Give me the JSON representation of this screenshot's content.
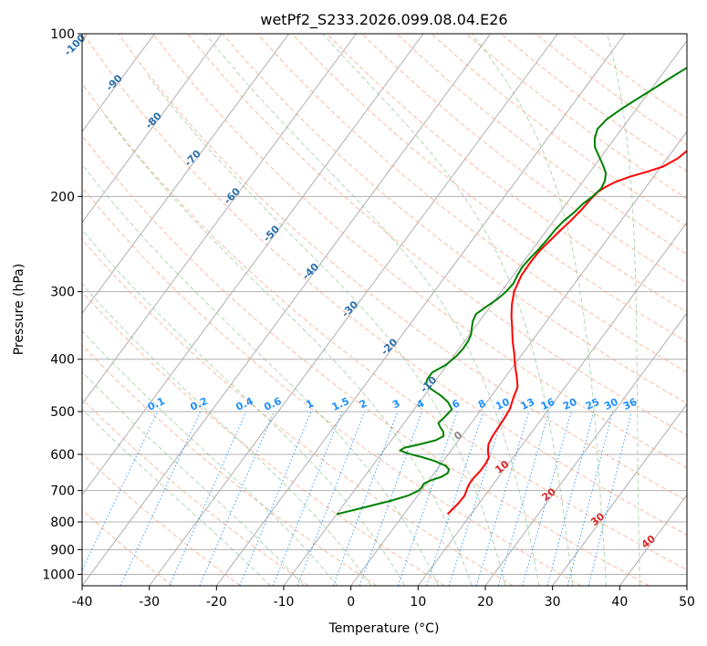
{
  "chart_data": {
    "type": "line",
    "subtype": "skew-t log-p",
    "title": "wetPf2_S233.2026.099.08.04.E26",
    "xlabel": "Temperature (°C)",
    "ylabel": "Pressure (hPa)",
    "xlim": [
      -40,
      50
    ],
    "ylim": [
      1050,
      100
    ],
    "x_ticks": [
      "-40",
      "-30",
      "-20",
      "-10",
      "0",
      "10",
      "20",
      "30",
      "40",
      "50"
    ],
    "y_ticks": [
      {
        "p": 100,
        "label": "100"
      },
      {
        "p": 200,
        "label": "200"
      },
      {
        "p": 300,
        "label": "300"
      },
      {
        "p": 400,
        "label": "400"
      },
      {
        "p": 500,
        "label": "500"
      },
      {
        "p": 600,
        "label": "600"
      },
      {
        "p": 700,
        "label": "700"
      },
      {
        "p": 800,
        "label": "800"
      },
      {
        "p": 900,
        "label": "900"
      },
      {
        "p": 1000,
        "label": "1000"
      }
    ],
    "series": [
      {
        "name": "Temperature",
        "color": "#ff0000",
        "points": [
          [
            774,
            6.5
          ],
          [
            740,
            6.9
          ],
          [
            715,
            7.0
          ],
          [
            695,
            6.6
          ],
          [
            680,
            6.4
          ],
          [
            662,
            6.4
          ],
          [
            645,
            6.6
          ],
          [
            625,
            6.6
          ],
          [
            608,
            6.4
          ],
          [
            590,
            5.5
          ],
          [
            575,
            4.9
          ],
          [
            555,
            4.6
          ],
          [
            535,
            4.5
          ],
          [
            515,
            4.4
          ],
          [
            495,
            4.2
          ],
          [
            472,
            3.5
          ],
          [
            450,
            2.9
          ],
          [
            430,
            1.6
          ],
          [
            410,
            0.1
          ],
          [
            390,
            -1.3
          ],
          [
            370,
            -2.9
          ],
          [
            350,
            -4.4
          ],
          [
            333,
            -5.8
          ],
          [
            317,
            -7.0
          ],
          [
            300,
            -8.1
          ],
          [
            280,
            -8.8
          ],
          [
            265,
            -8.9
          ],
          [
            252,
            -8.8
          ],
          [
            242,
            -8.4
          ],
          [
            232,
            -8.0
          ],
          [
            222,
            -7.5
          ],
          [
            212,
            -7.1
          ],
          [
            203,
            -6.9
          ],
          [
            196,
            -6.6
          ],
          [
            192,
            -6.0
          ],
          [
            188,
            -5.1
          ],
          [
            184,
            -3.6
          ],
          [
            180,
            -1.5
          ],
          [
            176,
            0.3
          ],
          [
            170,
            1.6
          ],
          [
            165,
            2.1
          ],
          [
            160,
            2.6
          ],
          [
            155,
            3.5
          ],
          [
            150,
            4.2
          ],
          [
            145,
            5.0
          ],
          [
            140,
            5.9
          ],
          [
            135,
            7.0
          ],
          [
            130,
            8.1
          ],
          [
            125,
            9.0
          ],
          [
            120,
            10.0
          ],
          [
            115,
            10.7
          ],
          [
            111,
            10.7
          ],
          [
            107,
            10.4
          ],
          [
            103,
            10.1
          ],
          [
            100,
            10.0
          ]
        ]
      },
      {
        "name": "Dewpoint",
        "color": "#008000",
        "points": [
          [
            774,
            -10.0
          ],
          [
            750,
            -6.3
          ],
          [
            730,
            -3.3
          ],
          [
            715,
            -1.4
          ],
          [
            700,
            -0.4
          ],
          [
            690,
            -0.3
          ],
          [
            680,
            -0.4
          ],
          [
            670,
            0.3
          ],
          [
            660,
            1.5
          ],
          [
            650,
            2.0
          ],
          [
            640,
            1.8
          ],
          [
            630,
            0.9
          ],
          [
            617,
            -1.3
          ],
          [
            607,
            -3.6
          ],
          [
            598,
            -6.0
          ],
          [
            590,
            -7.6
          ],
          [
            583,
            -7.2
          ],
          [
            575,
            -5.4
          ],
          [
            565,
            -3.4
          ],
          [
            555,
            -2.7
          ],
          [
            545,
            -3.2
          ],
          [
            535,
            -4.1
          ],
          [
            525,
            -4.9
          ],
          [
            510,
            -4.6
          ],
          [
            495,
            -4.4
          ],
          [
            480,
            -5.8
          ],
          [
            468,
            -7.4
          ],
          [
            455,
            -9.6
          ],
          [
            445,
            -11.0
          ],
          [
            435,
            -11.4
          ],
          [
            423,
            -11.4
          ],
          [
            410,
            -10.2
          ],
          [
            395,
            -9.6
          ],
          [
            382,
            -9.4
          ],
          [
            370,
            -9.5
          ],
          [
            360,
            -9.8
          ],
          [
            350,
            -10.4
          ],
          [
            340,
            -11.0
          ],
          [
            330,
            -11.3
          ],
          [
            320,
            -10.6
          ],
          [
            310,
            -9.8
          ],
          [
            300,
            -9.3
          ],
          [
            290,
            -9.1
          ],
          [
            280,
            -9.4
          ],
          [
            270,
            -9.6
          ],
          [
            260,
            -9.4
          ],
          [
            250,
            -9.1
          ],
          [
            240,
            -8.9
          ],
          [
            230,
            -8.8
          ],
          [
            222,
            -8.5
          ],
          [
            214,
            -7.9
          ],
          [
            206,
            -7.5
          ],
          [
            200,
            -6.9
          ],
          [
            193,
            -6.5
          ],
          [
            187,
            -6.8
          ],
          [
            181,
            -7.5
          ],
          [
            175,
            -8.8
          ],
          [
            168,
            -10.5
          ],
          [
            162,
            -12.0
          ],
          [
            156,
            -13.0
          ],
          [
            150,
            -13.6
          ],
          [
            144,
            -13.3
          ],
          [
            138,
            -12.3
          ],
          [
            132,
            -11.0
          ],
          [
            126,
            -9.6
          ],
          [
            120,
            -8.2
          ],
          [
            114,
            -6.6
          ],
          [
            108,
            -4.9
          ],
          [
            103,
            -3.8
          ],
          [
            100,
            -3.0
          ]
        ]
      }
    ],
    "background": {
      "dry_adiabat_labels": [
        "-100",
        "-90",
        "-80",
        "-70",
        "-60",
        "-50",
        "-40",
        "-30",
        "-20",
        "-10"
      ],
      "moist_adiabat_labels": [
        "0",
        "10",
        "20",
        "30",
        "40"
      ],
      "mixing_ratio_labels": [
        "0.1",
        "0.2",
        "0.4",
        "0.6",
        "1",
        "1.5",
        "2",
        "3",
        "4",
        "6",
        "8",
        "10",
        "13",
        "16",
        "20",
        "25",
        "30",
        "36"
      ]
    }
  }
}
